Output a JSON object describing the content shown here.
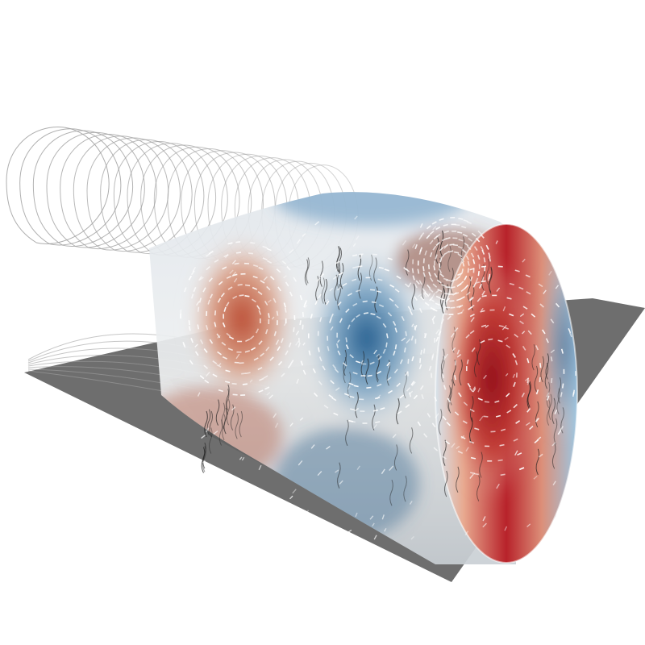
{
  "scene": {
    "subject": "half-cylinder-flow-visualization",
    "background_color": "#ffffff",
    "floor_color": "#6e6e6e",
    "contour_color": "#a0a0a0",
    "colormap": {
      "negative": "#1f5a8c",
      "neutral": "#ecedee",
      "positive": "#9e0f1c"
    }
  },
  "features": {
    "vortex_count": 4,
    "signs": [
      "positive",
      "negative",
      "positive",
      "negative"
    ],
    "show_floor_shadow": true,
    "show_contour_wireframe": true,
    "show_vector_glyphs": true
  }
}
